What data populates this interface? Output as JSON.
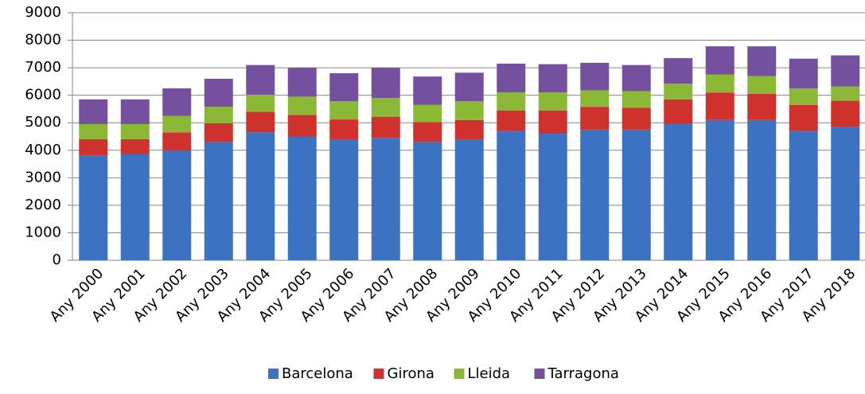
{
  "chart_data": {
    "type": "stacked_bar",
    "categories": [
      "Any 2000",
      "Any 2001",
      "Any 2002",
      "Any 2003",
      "Any 2004",
      "Any 2005",
      "Any 2006",
      "Any 2007",
      "Any 2008",
      "Any 2009",
      "Any 2010",
      "Any 2011",
      "Any 2012",
      "Any 2013",
      "Any 2014",
      "Any 2015",
      "Any 2016",
      "Any 2017",
      "Any 2018"
    ],
    "series": [
      {
        "name": "Barcelona",
        "color": "#3b73c2",
        "values": [
          3800,
          3850,
          4000,
          4300,
          4650,
          4500,
          4400,
          4450,
          4300,
          4400,
          4700,
          4600,
          4750,
          4750,
          4950,
          5100,
          5100,
          4700,
          4850
        ]
      },
      {
        "name": "Girona",
        "color": "#cf312c",
        "values": [
          600,
          550,
          650,
          680,
          750,
          780,
          720,
          770,
          720,
          700,
          750,
          850,
          830,
          800,
          900,
          1000,
          950,
          950,
          950
        ]
      },
      {
        "name": "Lleida",
        "color": "#8bb935",
        "values": [
          550,
          550,
          600,
          600,
          620,
          670,
          660,
          680,
          630,
          680,
          650,
          650,
          600,
          600,
          570,
          650,
          650,
          600,
          520
        ]
      },
      {
        "name": "Tarragona",
        "color": "#74509e",
        "values": [
          900,
          900,
          1000,
          1020,
          1080,
          1050,
          1020,
          1100,
          1030,
          1040,
          1050,
          1030,
          1000,
          950,
          930,
          1030,
          1080,
          1080,
          1130
        ]
      }
    ],
    "ylim": [
      0,
      9000
    ],
    "yticks": [
      0,
      1000,
      2000,
      3000,
      4000,
      5000,
      6000,
      7000,
      8000,
      9000
    ],
    "grid": true,
    "legend": "bottom"
  }
}
